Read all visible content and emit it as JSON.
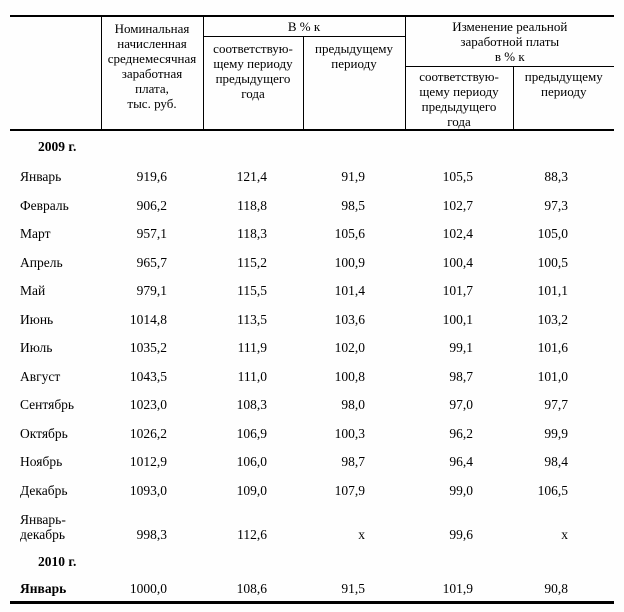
{
  "table": {
    "header": {
      "corner": "",
      "nominal": "Номинальная\nначисленная\nсреднемесячная\nзаработная\nплата,\nтыс. руб.",
      "group_percent": "В % к",
      "group_real": "Изменение реальной\nзаработной платы\nв % к",
      "sub_same_period": "соответствую-\nщему периоду\nпредыдущего\nгода",
      "sub_prev_period": "предыдущему\nпериоду"
    },
    "rows": [
      {
        "type": "year",
        "label": "2009 г.",
        "values": []
      },
      {
        "type": "month",
        "label": "Январь",
        "values": [
          "919,6",
          "121,4",
          "91,9",
          "105,5",
          "88,3"
        ]
      },
      {
        "type": "month",
        "label": "Февраль",
        "values": [
          "906,2",
          "118,8",
          "98,5",
          "102,7",
          "97,3"
        ]
      },
      {
        "type": "month",
        "label": "Март",
        "values": [
          "957,1",
          "118,3",
          "105,6",
          "102,4",
          "105,0"
        ]
      },
      {
        "type": "month",
        "label": "Апрель",
        "values": [
          "965,7",
          "115,2",
          "100,9",
          "100,4",
          "100,5"
        ]
      },
      {
        "type": "month",
        "label": "Май",
        "values": [
          "979,1",
          "115,5",
          "101,4",
          "101,7",
          "101,1"
        ]
      },
      {
        "type": "month",
        "label": "Июнь",
        "values": [
          "1014,8",
          "113,5",
          "103,6",
          "100,1",
          "103,2"
        ]
      },
      {
        "type": "month",
        "label": "Июль",
        "values": [
          "1035,2",
          "111,9",
          "102,0",
          "99,1",
          "101,6"
        ]
      },
      {
        "type": "month",
        "label": "Август",
        "values": [
          "1043,5",
          "111,0",
          "100,8",
          "98,7",
          "101,0"
        ]
      },
      {
        "type": "month",
        "label": "Сентябрь",
        "values": [
          "1023,0",
          "108,3",
          "98,0",
          "97,0",
          "97,7"
        ]
      },
      {
        "type": "month",
        "label": "Октябрь",
        "values": [
          "1026,2",
          "106,9",
          "100,3",
          "96,2",
          "99,9"
        ]
      },
      {
        "type": "month",
        "label": "Ноябрь",
        "values": [
          "1012,9",
          "106,0",
          "98,7",
          "96,4",
          "98,4"
        ]
      },
      {
        "type": "month",
        "label": "Декабрь",
        "values": [
          "1093,0",
          "109,0",
          "107,9",
          "99,0",
          "106,5"
        ]
      },
      {
        "type": "total",
        "label": "Январь-\nдекабрь",
        "values": [
          "998,3",
          "112,6",
          "х",
          "99,6",
          "х"
        ]
      },
      {
        "type": "year2",
        "label": "2010 г.",
        "values": []
      },
      {
        "type": "monthb",
        "label": "Январь",
        "values": [
          "1000,0",
          "108,6",
          "91,5",
          "101,9",
          "90,8"
        ]
      }
    ]
  }
}
